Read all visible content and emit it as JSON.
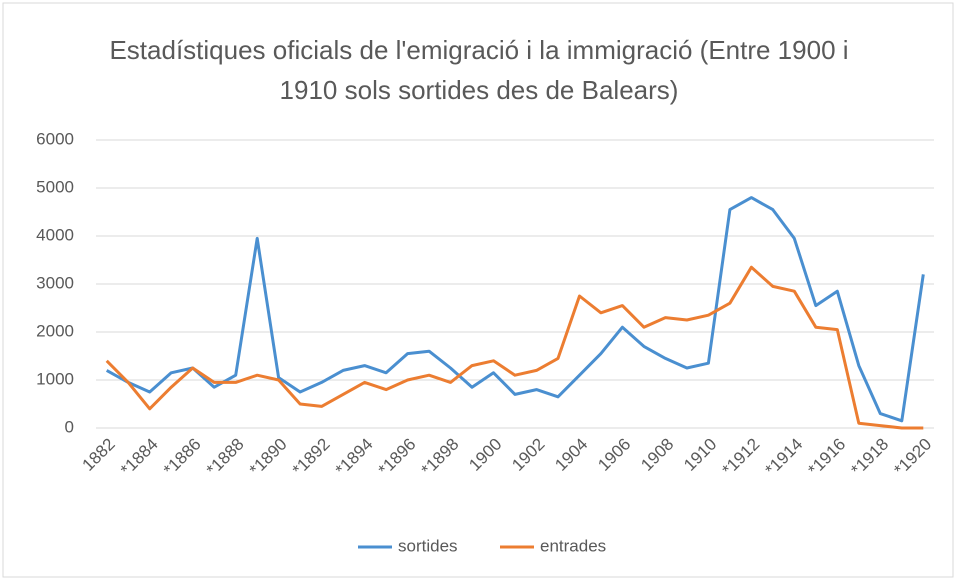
{
  "chart_data": {
    "type": "line",
    "title": "Estadístiques oficials de l'emigració i la immigració (Entre 1900 i 1910 sols sortides des de Balears)",
    "categories": [
      "1882",
      null,
      "*1884",
      null,
      "*1886",
      null,
      "*1888",
      null,
      "*1890",
      null,
      "*1892",
      null,
      "*1894",
      null,
      "*1896",
      null,
      "*1898",
      null,
      "1900",
      null,
      "1902",
      null,
      "1904",
      null,
      "1906",
      null,
      "1908",
      null,
      "1910",
      null,
      "*1912",
      null,
      "*1914",
      null,
      "*1916",
      null,
      "*1918",
      null,
      "*1920"
    ],
    "series": [
      {
        "name": "sortides",
        "color": "#4a8fd0",
        "values": [
          1200,
          950,
          750,
          1150,
          1250,
          850,
          1100,
          3950,
          1050,
          750,
          950,
          1200,
          1300,
          1150,
          1550,
          1600,
          1250,
          850,
          1150,
          700,
          800,
          650,
          1100,
          1550,
          2100,
          1700,
          1450,
          1250,
          1350,
          4550,
          4800,
          4550,
          3950,
          2550,
          2850,
          1300,
          300,
          150,
          3200
        ]
      },
      {
        "name": "entrades",
        "color": "#ec7d31",
        "values": [
          1400,
          950,
          400,
          850,
          1250,
          950,
          950,
          1100,
          1000,
          500,
          450,
          700,
          950,
          800,
          1000,
          1100,
          950,
          1300,
          1400,
          1100,
          1200,
          1450,
          2750,
          2400,
          2550,
          2100,
          2300,
          2250,
          2350,
          2600,
          3350,
          2950,
          2850,
          2100,
          2050,
          100,
          50,
          0,
          0
        ]
      }
    ],
    "ylim": [
      0,
      6000
    ],
    "yticks": [
      0,
      1000,
      2000,
      3000,
      4000,
      5000,
      6000
    ],
    "grid": true,
    "legend": "bottom"
  }
}
